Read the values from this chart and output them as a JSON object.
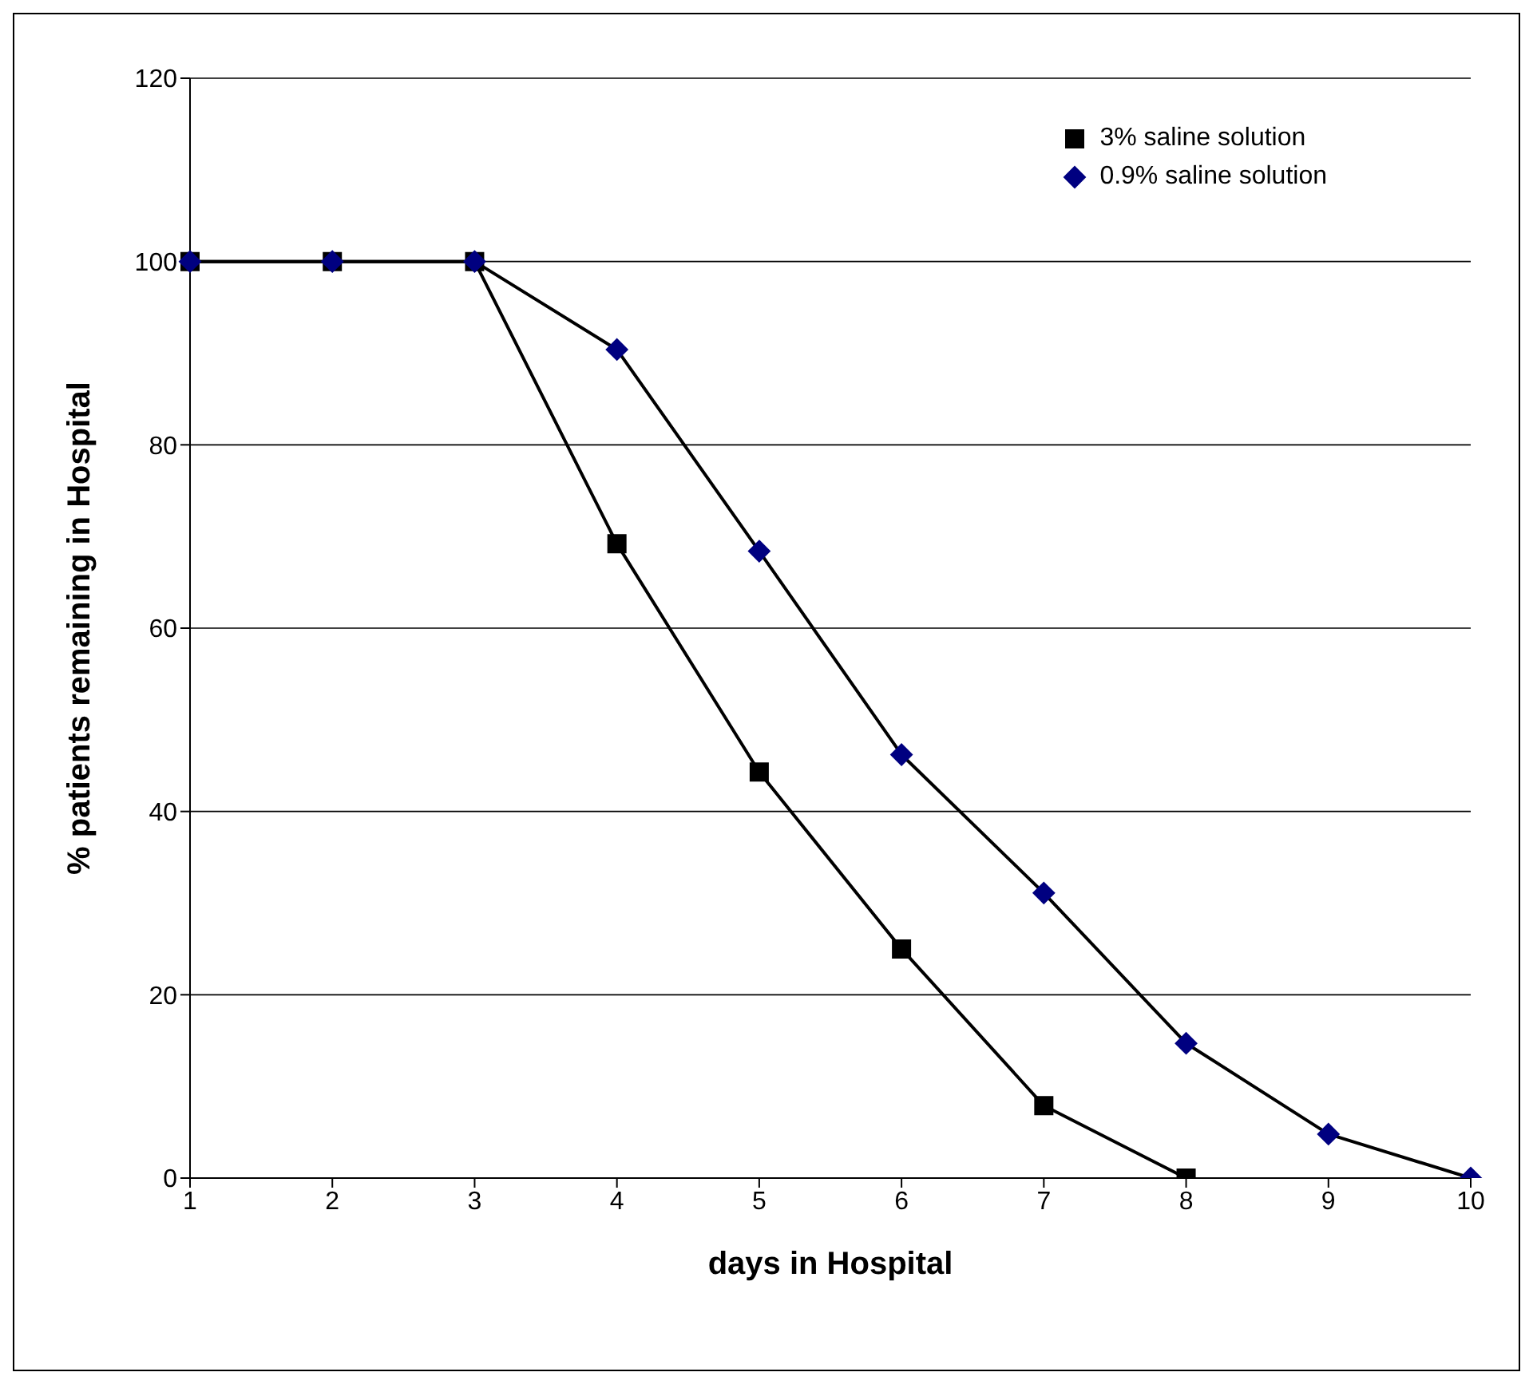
{
  "chart_data": {
    "type": "line",
    "xlabel": "days in Hospital",
    "ylabel": "% patients remaining in Hospital",
    "categories": [
      "1",
      "2",
      "3",
      "4",
      "5",
      "6",
      "7",
      "8",
      "9",
      "10"
    ],
    "series": [
      {
        "name": "3% saline solution",
        "color": "#000000",
        "marker": "square",
        "values": [
          100,
          100,
          100,
          69.2,
          44.3,
          25.0,
          7.9,
          0,
          null,
          null
        ]
      },
      {
        "name": "0.9% saline solution",
        "color": "#000080",
        "marker": "diamond",
        "values": [
          100,
          100,
          100,
          90.4,
          68.4,
          46.2,
          31.1,
          14.7,
          4.8,
          0
        ]
      }
    ],
    "ylim": [
      0,
      120
    ],
    "yticks": [
      0,
      20,
      40,
      60,
      80,
      100,
      120
    ],
    "grid": "y",
    "legend": "top right"
  }
}
